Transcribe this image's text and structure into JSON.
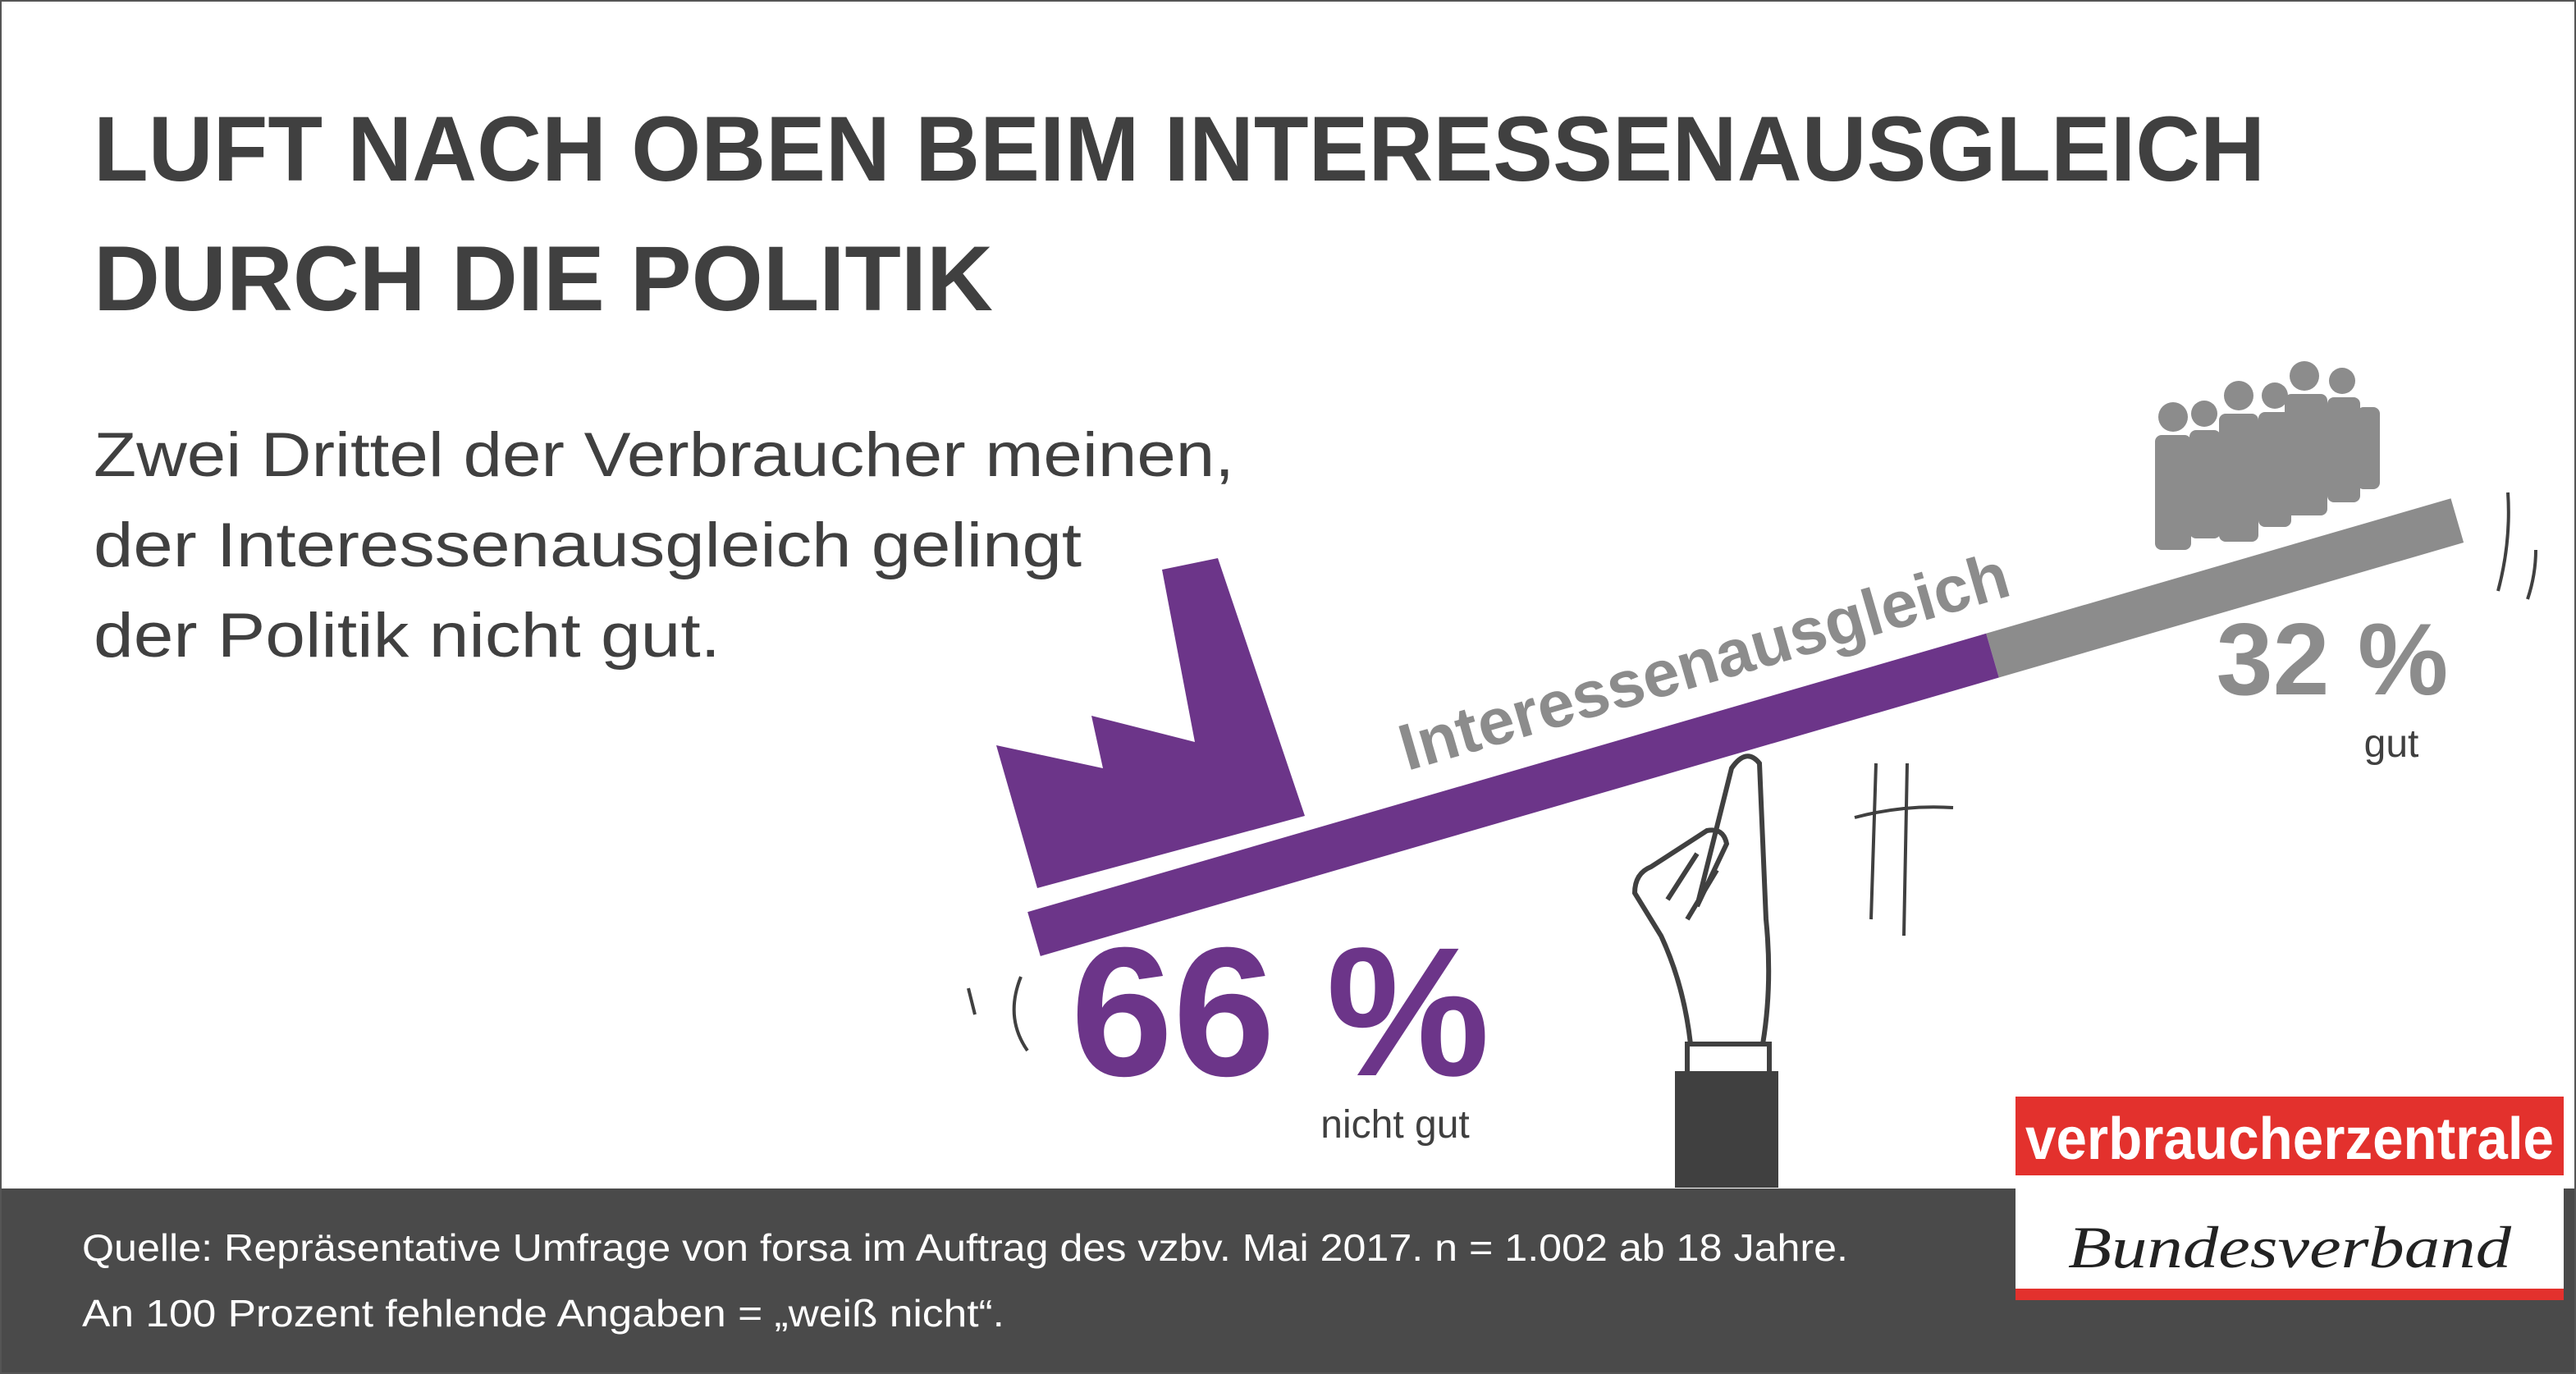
{
  "chart_data": {
    "type": "bar",
    "title": [
      "LUFT NACH OBEN BEIM INTERESSENAUSGLEICH",
      "DURCH DIE POLITIK"
    ],
    "subtitle": [
      "Zwei Drittel der Verbraucher meinen,",
      "der Interessenausgleich gelingt",
      "der Politik nicht gut."
    ],
    "axis_label": "Interessenausgleich",
    "categories": [
      "nicht gut",
      "gut"
    ],
    "values": [
      66,
      32
    ],
    "value_labels": [
      "66 %",
      "32 %"
    ],
    "colors": [
      "#6c3589",
      "#8c8c8c"
    ]
  },
  "source": [
    "Quelle: Repräsentative Umfrage von forsa im Auftrag des vzbv. Mai 2017. n = 1.002 ab 18 Jahre.",
    "An 100 Prozent fehlende Angaben = „weiß nicht“."
  ],
  "logo": {
    "name": "verbraucherzentrale",
    "subtitle": "Bundesverband"
  }
}
